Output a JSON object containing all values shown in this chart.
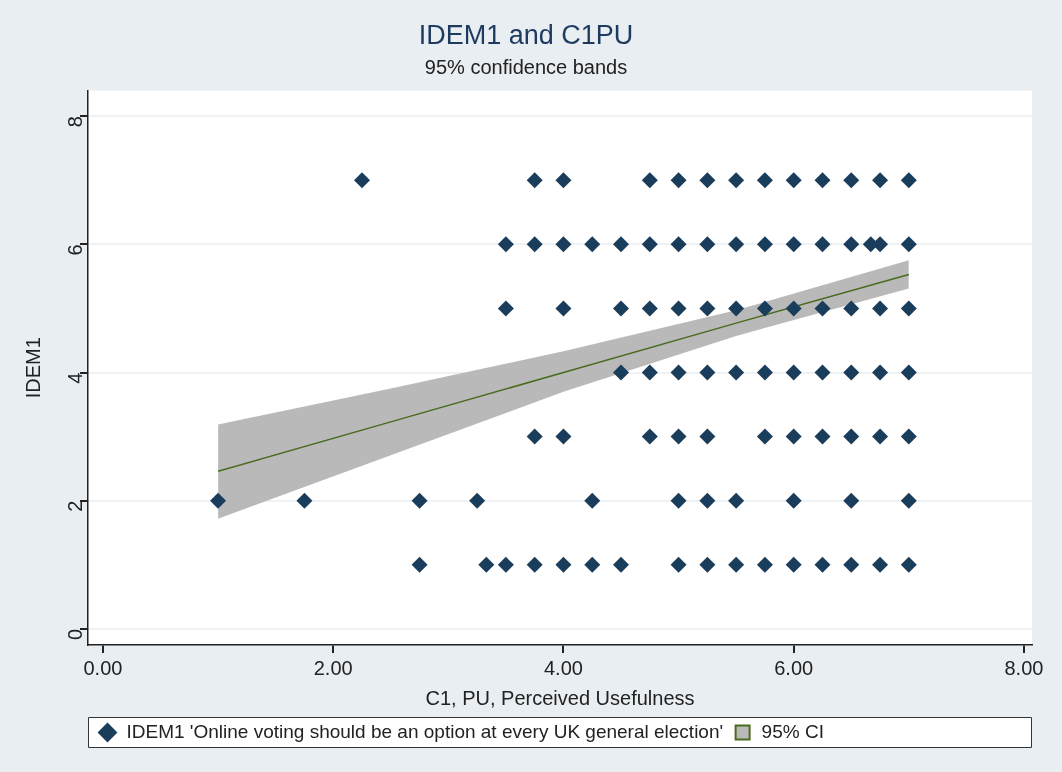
{
  "chart_data": {
    "type": "scatter",
    "title": "IDEM1 and C1PU",
    "subtitle": "95% confidence bands",
    "xlabel": "C1, PU, Perceived Usefulness",
    "ylabel": "IDEM1",
    "xlim": [
      -0.13,
      8.07
    ],
    "ylim": [
      -0.25,
      8.4
    ],
    "xticks": [
      {
        "value": 0,
        "label": "0.00"
      },
      {
        "value": 2,
        "label": "2.00"
      },
      {
        "value": 4,
        "label": "4.00"
      },
      {
        "value": 6,
        "label": "6.00"
      },
      {
        "value": 8,
        "label": "8.00"
      }
    ],
    "yticks": [
      0,
      2,
      4,
      6,
      8
    ],
    "grid": "y",
    "legend": "bottom",
    "marker": "diamond",
    "series": [
      {
        "type": "scatter",
        "name": "IDEM1 'Online voting should be an option at every UK general election'",
        "color": "#1b3d5c",
        "x": [
          2.25,
          3.75,
          4,
          4.75,
          5,
          5.25,
          5.5,
          5.75,
          6,
          6.25,
          6.5,
          6.75,
          7,
          3.5,
          3.75,
          4,
          4.25,
          4.5,
          4.75,
          5,
          5.25,
          5.5,
          5.75,
          6,
          6.25,
          6.5,
          6.67,
          6.75,
          7,
          3.5,
          4,
          4.5,
          4.75,
          5,
          5.25,
          5.5,
          5.75,
          6,
          6.25,
          6.5,
          6.75,
          7,
          4.5,
          4.75,
          5,
          5.25,
          5.5,
          5.75,
          6,
          6.25,
          6.5,
          6.75,
          7,
          3.75,
          4,
          4.75,
          5,
          5.25,
          5.75,
          6,
          6.25,
          6.5,
          6.75,
          7,
          1,
          1.75,
          2.75,
          3.25,
          4.25,
          5,
          5.25,
          5.5,
          6,
          6.5,
          7,
          2.75,
          3.33,
          3.5,
          3.75,
          4,
          4.25,
          4.5,
          5,
          5.25,
          5.5,
          5.75,
          6,
          6.25,
          6.5,
          6.75,
          7
        ],
        "values": [
          7,
          7,
          7,
          7,
          7,
          7,
          7,
          7,
          7,
          7,
          7,
          7,
          7,
          6,
          6,
          6,
          6,
          6,
          6,
          6,
          6,
          6,
          6,
          6,
          6,
          6,
          6,
          6,
          6,
          5,
          5,
          5,
          5,
          5,
          5,
          5,
          5,
          5,
          5,
          5,
          5,
          5,
          4,
          4,
          4,
          4,
          4,
          4,
          4,
          4,
          4,
          4,
          4,
          3,
          3,
          3,
          3,
          3,
          3,
          3,
          3,
          3,
          3,
          3,
          2,
          2,
          2,
          2,
          2,
          2,
          2,
          2,
          2,
          2,
          2,
          1,
          1,
          1,
          1,
          1,
          1,
          1,
          1,
          1,
          1,
          1,
          1,
          1,
          1,
          1,
          1
        ]
      },
      {
        "type": "line",
        "name": "95% CI",
        "color": "#4a6b1e",
        "marker": "none",
        "x": [
          1,
          2.5,
          4,
          5.5,
          7
        ],
        "values": [
          2.46,
          3.23,
          4.0,
          4.77,
          5.53
        ],
        "lower": [
          1.72,
          2.71,
          3.7,
          4.57,
          5.31
        ],
        "upper": [
          3.19,
          3.75,
          4.33,
          4.97,
          5.75
        ]
      }
    ]
  }
}
